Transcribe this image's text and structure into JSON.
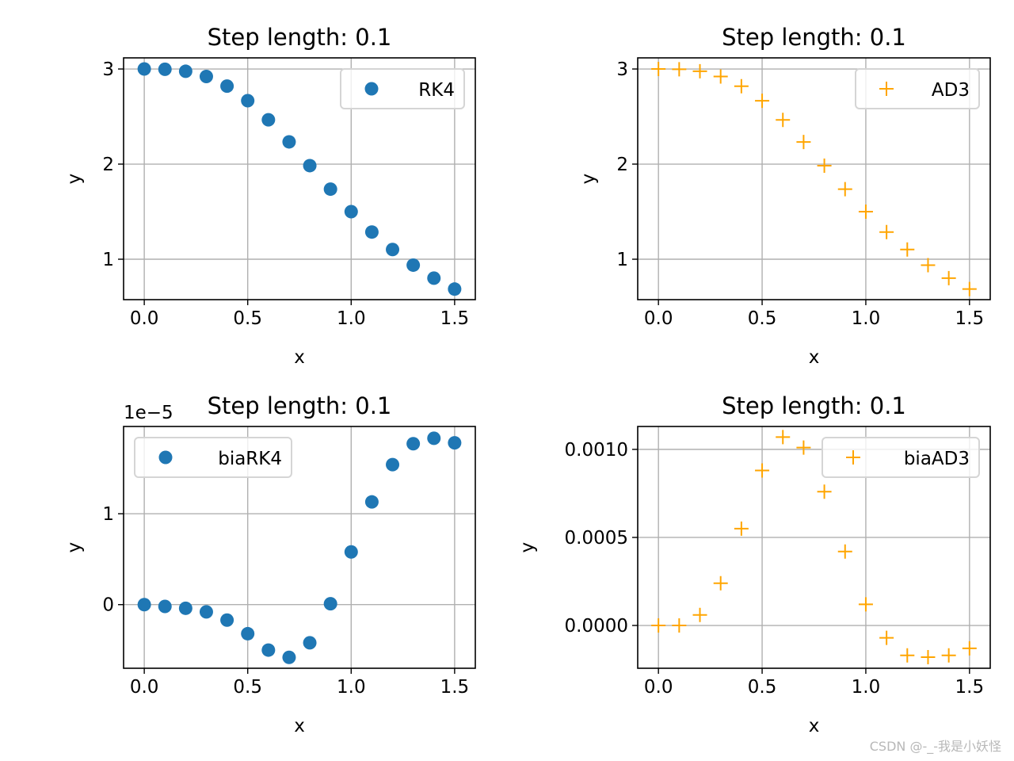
{
  "watermark": "CSDN @-_-我是小妖怪",
  "chart_data": [
    {
      "type": "scatter",
      "title": "Step length: 0.1",
      "xlabel": "x",
      "ylabel": "y",
      "xlim": [
        -0.1,
        1.6
      ],
      "ylim": [
        0.575,
        3.117
      ],
      "xticks": [
        0.0,
        0.5,
        1.0,
        1.5
      ],
      "xtick_labels": [
        "0.0",
        "0.5",
        "1.0",
        "1.5"
      ],
      "yticks": [
        1,
        2,
        3
      ],
      "ytick_labels": [
        "1",
        "2",
        "3"
      ],
      "offset_text": "",
      "grid": true,
      "legend": "upper right",
      "series": [
        {
          "name": "RK4",
          "marker": "circle",
          "color": "#1f77b4",
          "x": [
            0,
            0.1,
            0.2,
            0.3,
            0.4,
            0.5,
            0.6,
            0.7,
            0.8,
            0.9,
            1.0,
            1.1,
            1.2,
            1.3,
            1.4,
            1.5
          ],
          "y": [
            3.0,
            2.997,
            2.976,
            2.921,
            2.82,
            2.667,
            2.466,
            2.234,
            1.984,
            1.737,
            1.5,
            1.286,
            1.102,
            0.938,
            0.801,
            0.686
          ]
        }
      ]
    },
    {
      "type": "scatter",
      "title": "Step length: 0.1",
      "xlabel": "x",
      "ylabel": "y",
      "xlim": [
        -0.1,
        1.6
      ],
      "ylim": [
        0.575,
        3.117
      ],
      "xticks": [
        0.0,
        0.5,
        1.0,
        1.5
      ],
      "xtick_labels": [
        "0.0",
        "0.5",
        "1.0",
        "1.5"
      ],
      "yticks": [
        1,
        2,
        3
      ],
      "ytick_labels": [
        "1",
        "2",
        "3"
      ],
      "offset_text": "",
      "grid": true,
      "legend": "upper right",
      "series": [
        {
          "name": "AD3",
          "marker": "plus",
          "color": "#ffa500",
          "x": [
            0,
            0.1,
            0.2,
            0.3,
            0.4,
            0.5,
            0.6,
            0.7,
            0.8,
            0.9,
            1.0,
            1.1,
            1.2,
            1.3,
            1.4,
            1.5
          ],
          "y": [
            3.0,
            2.997,
            2.976,
            2.921,
            2.819,
            2.666,
            2.465,
            2.233,
            1.983,
            1.737,
            1.5,
            1.286,
            1.102,
            0.938,
            0.801,
            0.686
          ]
        }
      ]
    },
    {
      "type": "scatter",
      "title": "Step length: 0.1",
      "xlabel": "x",
      "ylabel": "y",
      "xlim": [
        -0.1,
        1.6
      ],
      "ylim": [
        -0.7,
        1.96
      ],
      "xticks": [
        0.0,
        0.5,
        1.0,
        1.5
      ],
      "xtick_labels": [
        "0.0",
        "0.5",
        "1.0",
        "1.5"
      ],
      "yticks": [
        0,
        1
      ],
      "ytick_labels": [
        "0",
        "1"
      ],
      "offset_text": "1e−5",
      "grid": true,
      "legend": "upper left",
      "series": [
        {
          "name": "biaRK4",
          "marker": "circle",
          "color": "#1f77b4",
          "x": [
            0,
            0.1,
            0.2,
            0.3,
            0.4,
            0.5,
            0.6,
            0.7,
            0.8,
            0.9,
            1.0,
            1.1,
            1.2,
            1.3,
            1.4,
            1.5
          ],
          "y": [
            0,
            -0.02,
            -0.04,
            -0.08,
            -0.17,
            -0.32,
            -0.5,
            -0.58,
            -0.42,
            0.01,
            0.58,
            1.13,
            1.54,
            1.77,
            1.83,
            1.78
          ]
        }
      ]
    },
    {
      "type": "scatter",
      "title": "Step length: 0.1",
      "xlabel": "x",
      "ylabel": "y",
      "xlim": [
        -0.1,
        1.6
      ],
      "ylim": [
        -0.000243,
        0.00113
      ],
      "xticks": [
        0.0,
        0.5,
        1.0,
        1.5
      ],
      "xtick_labels": [
        "0.0",
        "0.5",
        "1.0",
        "1.5"
      ],
      "yticks": [
        0,
        0.0005,
        0.001
      ],
      "ytick_labels": [
        "0.0000",
        "0.0005",
        "0.0010"
      ],
      "offset_text": "",
      "grid": true,
      "legend": "upper right",
      "series": [
        {
          "name": "biaAD3",
          "marker": "plus",
          "color": "#ffa500",
          "x": [
            0,
            0.1,
            0.2,
            0.3,
            0.4,
            0.5,
            0.6,
            0.7,
            0.8,
            0.9,
            1.0,
            1.1,
            1.2,
            1.3,
            1.4,
            1.5
          ],
          "y": [
            0,
            0,
            6e-05,
            0.00024,
            0.00055,
            0.00088,
            0.00107,
            0.00101,
            0.00076,
            0.00042,
            0.00012,
            -7e-05,
            -0.00017,
            -0.00018,
            -0.00017,
            -0.00013
          ]
        }
      ]
    }
  ]
}
